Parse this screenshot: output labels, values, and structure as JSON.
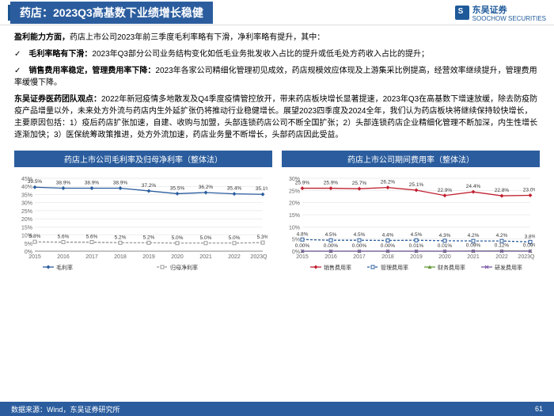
{
  "header": {
    "title": "药店：2023Q3高基数下业绩增长稳健",
    "logo_cn": "东吴证券",
    "logo_en": "SOOCHOW SECURITIES"
  },
  "p1": {
    "lead": "盈利能力方面，",
    "rest": "药店上市公司2023年前三季度毛利率略有下滑，净利率略有提升，其中："
  },
  "bullet1": {
    "lead": "毛利率略有下滑：",
    "rest": "2023年Q3部分公司业务结构变化如低毛业务批发收入占比的提升或低毛处方药收入占比的提升；"
  },
  "bullet2": {
    "lead": "销售费用率稳定，管理费用率下降：",
    "rest": "2023年各家公司精细化管理初见成效，药店规模效应体现及上游集采比例提高，经营效率继续提升，管理费用率缓慢下降。"
  },
  "p2": {
    "lead": "东吴证券医药团队观点：",
    "rest": "2022年新冠疫情多地散发及Q4季度疫情管控放开，带来药店板块增长显著提速，2023年Q3在高基数下增速放缓，除去防疫防疫产品增量以外，未来处方外流与药店内生外延扩张仍将推动行业稳健增长。展望2023四季度及2024全年，我们认为药店板块将继续保持较快增长，主要原因包括：1）疫后药店扩张加速，自建、收购与加盟，头部连锁药店公司不断全国扩张；2）头部连锁药店企业精细化管理不断加深，内生性增长逐渐加快；3）医保统筹政策推进，处方外流加速，药店业务量不断增长，头部药店因此受益。"
  },
  "chart1": {
    "title": "药店上市公司毛利率及归母净利率（整体法）",
    "type": "line",
    "x": [
      "2015",
      "2016",
      "2017",
      "2018",
      "2019",
      "2020",
      "2021",
      "2022",
      "2023Q1-3"
    ],
    "series": [
      {
        "name": "毛利率",
        "color": "#2b5d9e",
        "marker": "diamond",
        "values": [
          39.5,
          38.9,
          38.9,
          38.9,
          37.2,
          35.5,
          36.2,
          35.4,
          35.1
        ],
        "labels": [
          "39.5%",
          "38.9%",
          "38.9%",
          "38.9%",
          "37.2%",
          "35.5%",
          "36.2%",
          "35.4%",
          "35.1%"
        ]
      },
      {
        "name": "归母净利率",
        "color": "#999",
        "marker": "square",
        "dash": true,
        "values": [
          5.8,
          5.6,
          5.6,
          5.2,
          5.2,
          5.0,
          5.0,
          5.0,
          5.3
        ],
        "labels": [
          "5.8%",
          "5.6%",
          "5.6%",
          "5.2%",
          "5.2%",
          "5.0%",
          "5.0%",
          "5.0%",
          "5.3%"
        ]
      }
    ],
    "ylim": [
      0,
      45
    ],
    "yticks": [
      "0%",
      "5%",
      "10%",
      "15%",
      "20%",
      "25%",
      "30%",
      "35%",
      "40%",
      "45%"
    ],
    "legend": [
      "毛利率",
      "归母净利率"
    ]
  },
  "chart2": {
    "title": "药店上市公司期间费用率（整体法）",
    "type": "line",
    "x": [
      "2015",
      "2016",
      "2017",
      "2018",
      "2019",
      "2020",
      "2021",
      "2022",
      "2023Q1-3"
    ],
    "series": [
      {
        "name": "销售费用率",
        "color": "#c02030",
        "marker": "diamond",
        "values": [
          25.9,
          25.9,
          25.7,
          26.2,
          25.1,
          22.9,
          24.4,
          22.8,
          23.0
        ],
        "labels": [
          "25.9%",
          "25.9%",
          "25.7%",
          "26.2%",
          "25.1%",
          "22.9%",
          "24.4%",
          "22.8%",
          "23.0%"
        ]
      },
      {
        "name": "管理费用率",
        "color": "#2b5d9e",
        "marker": "square",
        "dash": true,
        "values": [
          4.8,
          4.5,
          4.5,
          4.4,
          4.5,
          4.3,
          4.2,
          4.2,
          3.8
        ],
        "labels": [
          "4.8%",
          "4.5%",
          "4.5%",
          "4.4%",
          "4.5%",
          "4.3%",
          "4.2%",
          "4.2%",
          "3.8%"
        ]
      },
      {
        "name": "财务费用率",
        "color": "#6a9a3a",
        "marker": "triangle",
        "values": [
          0.0,
          0.0,
          0.0,
          0.0,
          0.01,
          0.01,
          0.09,
          0.12,
          0.09
        ],
        "labels": [
          "0.00%",
          "0.00%",
          "0.00%",
          "0.00%",
          "0.01%",
          "0.01%",
          "0.09%",
          "0.12%",
          "0.09%"
        ]
      },
      {
        "name": "研发费用率",
        "color": "#7a5aa6",
        "marker": "x",
        "values": [
          0,
          0,
          0,
          0,
          0,
          0,
          0,
          0,
          0
        ],
        "labels": [
          "",
          "",
          "",
          "",
          "",
          "",
          "",
          "",
          ""
        ]
      }
    ],
    "ylim": [
      0,
      30
    ],
    "yticks": [
      "0%",
      "5%",
      "10%",
      "15%",
      "20%",
      "25%",
      "30%"
    ],
    "legend": [
      "销售费用率",
      "管理费用率",
      "财务费用率",
      "研发费用率"
    ]
  },
  "footer": {
    "source": "数据来源：Wind，东吴证券研究所",
    "page": "61"
  }
}
